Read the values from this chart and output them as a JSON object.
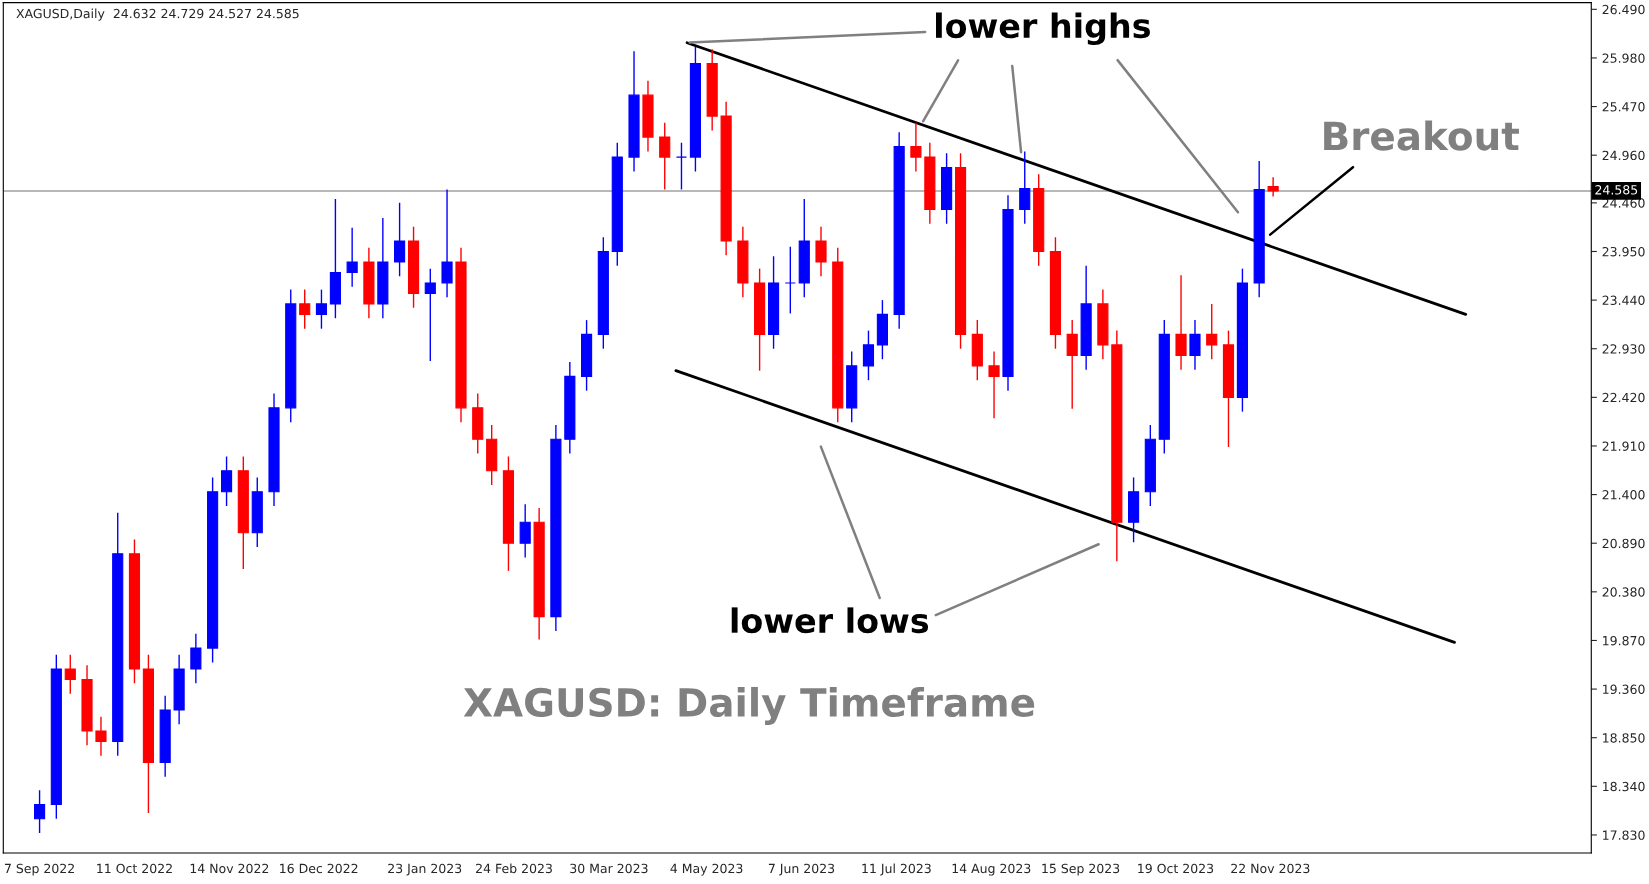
{
  "chart_data": {
    "type": "candlestick",
    "title": "XAGUSD,Daily  24.632 24.729 24.527 24.585",
    "x": [
      "2022-09-07",
      "2022-09-13",
      "2022-09-18",
      "2022-09-24",
      "2022-09-29",
      "2022-10-05",
      "2022-10-11",
      "2022-10-16",
      "2022-10-22",
      "2022-10-27",
      "2022-11-02",
      "2022-11-08",
      "2022-11-13",
      "2022-11-19",
      "2022-11-24",
      "2022-11-30",
      "2022-12-06",
      "2022-12-11",
      "2022-12-17",
      "2022-12-22",
      "2022-12-28",
      "2023-01-03",
      "2023-01-08",
      "2023-01-14",
      "2023-01-19",
      "2023-01-25",
      "2023-01-31",
      "2023-02-05",
      "2023-02-11",
      "2023-02-16",
      "2023-02-22",
      "2023-02-28",
      "2023-03-05",
      "2023-03-11",
      "2023-03-16",
      "2023-03-22",
      "2023-03-28",
      "2023-04-02",
      "2023-04-08",
      "2023-04-13",
      "2023-04-19",
      "2023-04-25",
      "2023-04-30",
      "2023-05-06",
      "2023-05-11",
      "2023-05-17",
      "2023-05-23",
      "2023-05-28",
      "2023-06-03",
      "2023-06-08",
      "2023-06-14",
      "2023-06-20",
      "2023-06-25",
      "2023-07-01",
      "2023-07-06",
      "2023-07-12",
      "2023-07-18",
      "2023-07-23",
      "2023-07-29",
      "2023-08-03",
      "2023-08-09",
      "2023-08-15",
      "2023-08-20",
      "2023-08-26",
      "2023-08-31",
      "2023-09-06",
      "2023-09-12",
      "2023-09-17",
      "2023-09-23",
      "2023-09-28",
      "2023-10-04",
      "2023-10-10",
      "2023-10-15",
      "2023-10-21",
      "2023-10-26",
      "2023-11-01",
      "2023-11-07",
      "2023-11-12",
      "2023-11-18",
      "2023-11-23"
    ],
    "ohlc": [
      [
        18.0,
        18.3,
        17.85,
        18.15
      ],
      [
        18.15,
        19.72,
        18.0,
        19.57
      ],
      [
        19.57,
        19.72,
        19.31,
        19.46
      ],
      [
        19.46,
        19.61,
        18.77,
        18.92
      ],
      [
        18.92,
        19.07,
        18.66,
        18.81
      ],
      [
        18.81,
        21.21,
        18.66,
        20.78
      ],
      [
        20.78,
        20.93,
        19.42,
        19.57
      ],
      [
        19.57,
        19.72,
        18.06,
        18.59
      ],
      [
        18.59,
        19.29,
        18.44,
        19.14
      ],
      [
        19.14,
        19.72,
        18.99,
        19.57
      ],
      [
        19.57,
        19.94,
        19.42,
        19.79
      ],
      [
        19.79,
        21.58,
        19.64,
        21.43
      ],
      [
        21.43,
        21.8,
        21.28,
        21.65
      ],
      [
        21.65,
        21.8,
        20.62,
        21.0
      ],
      [
        21.0,
        21.58,
        20.85,
        21.43
      ],
      [
        21.43,
        22.46,
        21.28,
        22.31
      ],
      [
        22.31,
        23.55,
        22.16,
        23.4
      ],
      [
        23.4,
        23.55,
        23.14,
        23.29
      ],
      [
        23.29,
        23.55,
        23.14,
        23.4
      ],
      [
        23.4,
        24.5,
        23.25,
        23.73
      ],
      [
        23.73,
        24.2,
        23.58,
        23.84
      ],
      [
        23.84,
        23.99,
        23.25,
        23.4
      ],
      [
        23.4,
        24.3,
        23.25,
        23.84
      ],
      [
        23.84,
        24.46,
        23.69,
        24.06
      ],
      [
        24.06,
        24.21,
        23.36,
        23.51
      ],
      [
        23.51,
        23.77,
        22.8,
        23.62
      ],
      [
        23.62,
        24.6,
        23.47,
        23.84
      ],
      [
        23.84,
        23.99,
        22.16,
        22.31
      ],
      [
        22.31,
        22.46,
        21.83,
        21.98
      ],
      [
        21.98,
        22.13,
        21.5,
        21.65
      ],
      [
        21.65,
        21.8,
        20.6,
        20.89
      ],
      [
        20.89,
        21.3,
        20.74,
        21.11
      ],
      [
        21.11,
        21.26,
        19.88,
        20.12
      ],
      [
        20.12,
        22.13,
        19.97,
        21.98
      ],
      [
        21.98,
        22.79,
        21.83,
        22.64
      ],
      [
        22.64,
        23.23,
        22.49,
        23.08
      ],
      [
        23.08,
        24.1,
        22.93,
        23.95
      ],
      [
        23.95,
        25.09,
        23.8,
        24.94
      ],
      [
        24.94,
        26.05,
        24.79,
        25.59
      ],
      [
        25.59,
        25.74,
        25.0,
        25.15
      ],
      [
        25.15,
        25.3,
        24.6,
        24.94
      ],
      [
        24.94,
        25.09,
        24.6,
        24.94
      ],
      [
        24.94,
        26.1,
        24.79,
        25.92
      ],
      [
        25.92,
        26.07,
        25.22,
        25.37
      ],
      [
        25.37,
        25.52,
        23.91,
        24.06
      ],
      [
        24.06,
        24.21,
        23.47,
        23.62
      ],
      [
        23.62,
        23.77,
        22.7,
        23.08
      ],
      [
        23.08,
        23.9,
        22.93,
        23.62
      ],
      [
        23.62,
        24.0,
        23.3,
        23.62
      ],
      [
        23.62,
        24.5,
        23.47,
        24.06
      ],
      [
        24.06,
        24.21,
        23.69,
        23.84
      ],
      [
        23.84,
        23.99,
        22.16,
        22.31
      ],
      [
        22.31,
        22.9,
        22.16,
        22.75
      ],
      [
        22.75,
        23.12,
        22.6,
        22.97
      ],
      [
        22.97,
        23.44,
        22.82,
        23.29
      ],
      [
        23.29,
        25.2,
        23.14,
        25.05
      ],
      [
        25.05,
        25.3,
        24.79,
        24.94
      ],
      [
        24.94,
        25.09,
        24.24,
        24.39
      ],
      [
        24.39,
        24.98,
        24.24,
        24.83
      ],
      [
        24.83,
        24.98,
        22.93,
        23.08
      ],
      [
        23.08,
        23.23,
        22.6,
        22.75
      ],
      [
        22.75,
        22.9,
        22.2,
        22.64
      ],
      [
        22.64,
        24.54,
        22.49,
        24.39
      ],
      [
        24.39,
        25.0,
        24.24,
        24.61
      ],
      [
        24.61,
        24.76,
        23.8,
        23.95
      ],
      [
        23.95,
        24.1,
        22.93,
        23.08
      ],
      [
        23.08,
        23.23,
        22.3,
        22.86
      ],
      [
        22.86,
        23.8,
        22.71,
        23.4
      ],
      [
        23.4,
        23.55,
        22.82,
        22.97
      ],
      [
        22.97,
        23.12,
        20.7,
        21.11
      ],
      [
        21.11,
        21.58,
        20.9,
        21.43
      ],
      [
        21.43,
        22.13,
        21.28,
        21.98
      ],
      [
        21.98,
        23.23,
        21.83,
        23.08
      ],
      [
        23.08,
        23.7,
        22.71,
        22.86
      ],
      [
        22.86,
        23.23,
        22.71,
        23.08
      ],
      [
        23.08,
        23.4,
        22.82,
        22.97
      ],
      [
        22.97,
        23.12,
        21.9,
        22.42
      ],
      [
        22.42,
        23.77,
        22.27,
        23.62
      ],
      [
        23.62,
        24.9,
        23.47,
        24.6
      ],
      [
        24.632,
        24.729,
        24.527,
        24.585
      ]
    ],
    "colors": [
      "#0000ff",
      "#0000ff",
      "#ff0000",
      "#ff0000",
      "#ff0000",
      "#0000ff",
      "#ff0000",
      "#ff0000",
      "#0000ff",
      "#0000ff",
      "#0000ff",
      "#0000ff",
      "#0000ff",
      "#ff0000",
      "#0000ff",
      "#0000ff",
      "#0000ff",
      "#ff0000",
      "#0000ff",
      "#0000ff",
      "#0000ff",
      "#ff0000",
      "#0000ff",
      "#0000ff",
      "#ff0000",
      "#0000ff",
      "#0000ff",
      "#ff0000",
      "#ff0000",
      "#ff0000",
      "#ff0000",
      "#0000ff",
      "#ff0000",
      "#0000ff",
      "#0000ff",
      "#0000ff",
      "#0000ff",
      "#0000ff",
      "#0000ff",
      "#ff0000",
      "#ff0000",
      "#0000ff",
      "#0000ff",
      "#ff0000",
      "#ff0000",
      "#ff0000",
      "#ff0000",
      "#0000ff",
      "#0000ff",
      "#0000ff",
      "#ff0000",
      "#ff0000",
      "#0000ff",
      "#0000ff",
      "#0000ff",
      "#0000ff",
      "#ff0000",
      "#ff0000",
      "#0000ff",
      "#ff0000",
      "#ff0000",
      "#ff0000",
      "#0000ff",
      "#0000ff",
      "#ff0000",
      "#ff0000",
      "#ff0000",
      "#0000ff",
      "#ff0000",
      "#ff0000",
      "#0000ff",
      "#0000ff",
      "#0000ff",
      "#ff0000",
      "#0000ff",
      "#ff0000",
      "#ff0000",
      "#0000ff",
      "#0000ff",
      "#ff0000"
    ],
    "series": [
      {
        "type": "line",
        "x": [
          "2023-04-27",
          "2024-01-31"
        ],
        "values": [
          26.14,
          23.29
        ],
        "color": "#000000"
      },
      {
        "type": "line",
        "x": [
          "2023-04-23",
          "2024-01-27"
        ],
        "values": [
          22.7,
          19.85
        ],
        "color": "#000000"
      }
    ],
    "xlim": [
      "2022-08-25",
      "2024-03-16"
    ],
    "ylim": [
      17.64,
      26.56
    ],
    "xticks": [
      {
        "value": "2022-09-07",
        "label": "7 Sep 2022"
      },
      {
        "value": "2022-10-11",
        "label": "11 Oct 2022"
      },
      {
        "value": "2022-11-14",
        "label": "14 Nov 2022"
      },
      {
        "value": "2022-12-16",
        "label": "16 Dec 2022"
      },
      {
        "value": "2023-01-23",
        "label": "23 Jan 2023"
      },
      {
        "value": "2023-02-24",
        "label": "24 Feb 2023"
      },
      {
        "value": "2023-03-30",
        "label": "30 Mar 2023"
      },
      {
        "value": "2023-05-04",
        "label": "4 May 2023"
      },
      {
        "value": "2023-06-07",
        "label": "7 Jun 2023"
      },
      {
        "value": "2023-07-11",
        "label": "11 Jul 2023"
      },
      {
        "value": "2023-08-14",
        "label": "14 Aug 2023"
      },
      {
        "value": "2023-09-15",
        "label": "15 Sep 2023"
      },
      {
        "value": "2023-10-19",
        "label": "19 Oct 2023"
      },
      {
        "value": "2023-11-22",
        "label": "22 Nov 2023"
      }
    ],
    "yticks": [
      {
        "value": 17.83,
        "label": "17.830"
      },
      {
        "value": 18.34,
        "label": "18.340"
      },
      {
        "value": 18.85,
        "label": "18.850"
      },
      {
        "value": 19.36,
        "label": "19.360"
      },
      {
        "value": 19.87,
        "label": "19.870"
      },
      {
        "value": 20.38,
        "label": "20.380"
      },
      {
        "value": 20.89,
        "label": "20.890"
      },
      {
        "value": 21.4,
        "label": "21.400"
      },
      {
        "value": 21.91,
        "label": "21.910"
      },
      {
        "value": 22.42,
        "label": "22.420"
      },
      {
        "value": 22.93,
        "label": "22.930"
      },
      {
        "value": 23.44,
        "label": "23.440"
      },
      {
        "value": 23.95,
        "label": "23.950"
      },
      {
        "value": 24.46,
        "label": "24.460"
      },
      {
        "value": 24.96,
        "label": "24.960"
      },
      {
        "value": 25.47,
        "label": "25.470"
      },
      {
        "value": 25.98,
        "label": "25.980"
      },
      {
        "value": 26.49,
        "label": "26.490"
      }
    ],
    "ref_lines": [
      {
        "axis": "y",
        "value": 24.585,
        "label": "24.585",
        "color": "#a0a0a0"
      }
    ],
    "annotations": [
      {
        "text": "lower highs",
        "x": "2023-04-27",
        "y": 26.14
      },
      "lower lows",
      "Breakout",
      "XAGUSD: Daily Timeframe"
    ],
    "grid": false
  }
}
